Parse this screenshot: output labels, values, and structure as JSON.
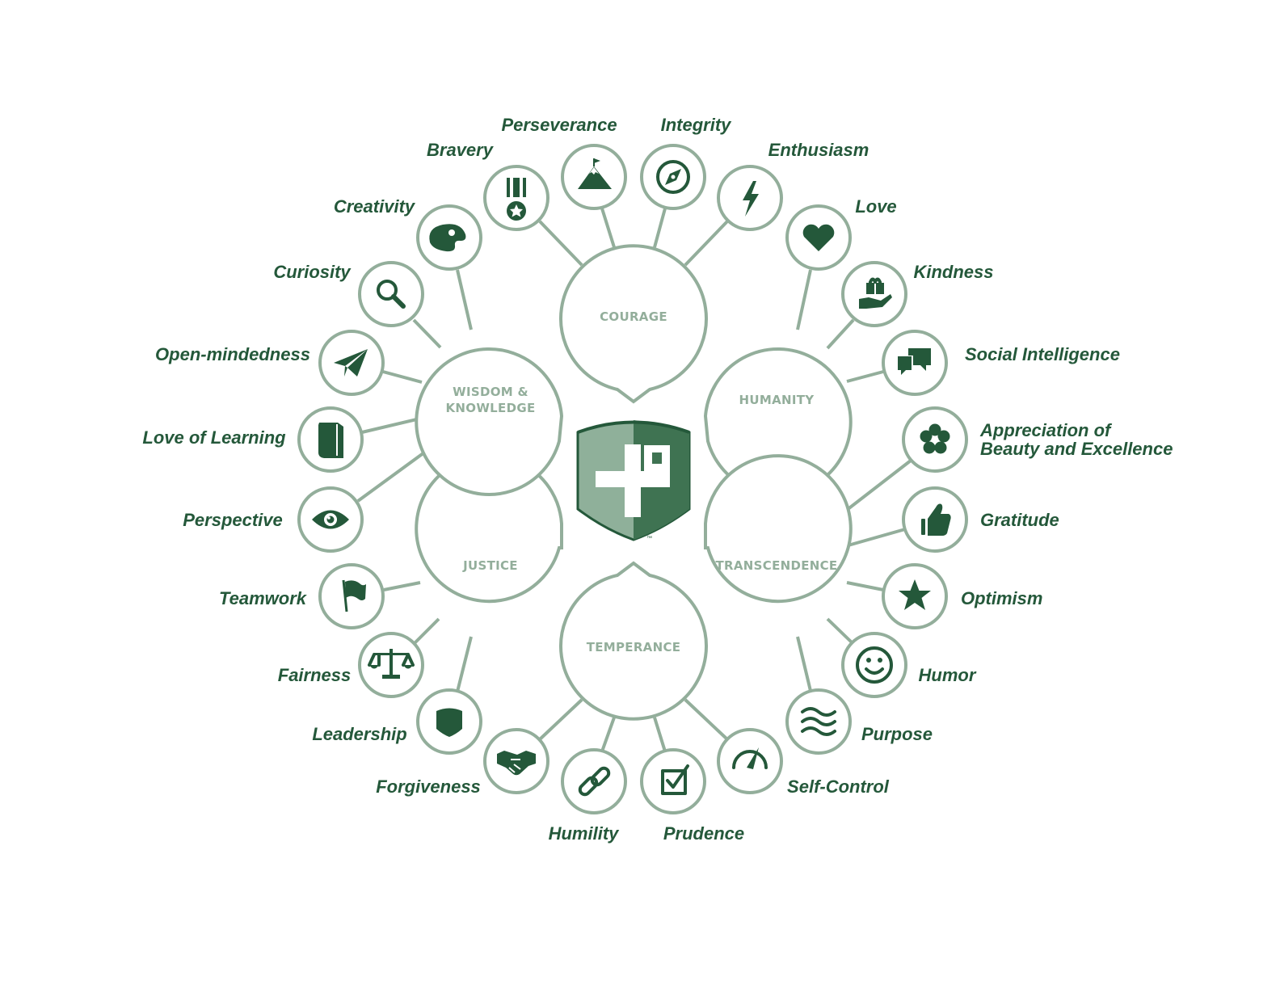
{
  "center": {
    "trademark": "™"
  },
  "categories": [
    {
      "id": "courage",
      "label": "COURAGE"
    },
    {
      "id": "humanity",
      "label": "HUMANITY"
    },
    {
      "id": "transcendence",
      "label": "TRANSCENDENCE"
    },
    {
      "id": "temperance",
      "label": "TEMPERANCE"
    },
    {
      "id": "justice",
      "label": "JUSTICE"
    },
    {
      "id": "wisdom",
      "label_lines": [
        "WISDOM &",
        "KNOWLEDGE"
      ]
    }
  ],
  "virtues": [
    {
      "id": "bravery",
      "label": "Bravery",
      "icon": "medal-icon"
    },
    {
      "id": "perseverance",
      "label": "Perseverance",
      "icon": "mountain-flag-icon"
    },
    {
      "id": "integrity",
      "label": "Integrity",
      "icon": "compass-icon"
    },
    {
      "id": "enthusiasm",
      "label": "Enthusiasm",
      "icon": "lightning-icon"
    },
    {
      "id": "love",
      "label": "Love",
      "icon": "heart-icon"
    },
    {
      "id": "kindness",
      "label": "Kindness",
      "icon": "gift-hand-icon"
    },
    {
      "id": "social-intelligence",
      "label": "Social Intelligence",
      "icon": "chat-bubbles-icon"
    },
    {
      "id": "appreciation",
      "label_lines": [
        "Appreciation of",
        "Beauty and Excellence"
      ],
      "icon": "flower-icon"
    },
    {
      "id": "gratitude",
      "label": "Gratitude",
      "icon": "thumbs-up-icon"
    },
    {
      "id": "optimism",
      "label": "Optimism",
      "icon": "star-icon"
    },
    {
      "id": "humor",
      "label": "Humor",
      "icon": "smiley-icon"
    },
    {
      "id": "purpose",
      "label": "Purpose",
      "icon": "waves-icon"
    },
    {
      "id": "self-control",
      "label": "Self-Control",
      "icon": "gauge-icon"
    },
    {
      "id": "prudence",
      "label": "Prudence",
      "icon": "checkbox-icon"
    },
    {
      "id": "humility",
      "label": "Humility",
      "icon": "link-icon"
    },
    {
      "id": "forgiveness",
      "label": "Forgiveness",
      "icon": "handshake-icon"
    },
    {
      "id": "leadership",
      "label": "Leadership",
      "icon": "shield-icon"
    },
    {
      "id": "fairness",
      "label": "Fairness",
      "icon": "scales-icon"
    },
    {
      "id": "teamwork",
      "label": "Teamwork",
      "icon": "flag-icon"
    },
    {
      "id": "perspective",
      "label": "Perspective",
      "icon": "eye-icon"
    },
    {
      "id": "love-of-learning",
      "label": "Love of Learning",
      "icon": "book-icon"
    },
    {
      "id": "open-mindedness",
      "label": "Open-mindedness",
      "icon": "paper-plane-icon"
    },
    {
      "id": "curiosity",
      "label": "Curiosity",
      "icon": "magnifier-icon"
    },
    {
      "id": "creativity",
      "label": "Creativity",
      "icon": "palette-icon"
    }
  ],
  "colors": {
    "dark_green": "#24583a",
    "light_green": "#93ae9b",
    "shield_light": "#8fb09a",
    "shield_dark": "#3f7352"
  }
}
